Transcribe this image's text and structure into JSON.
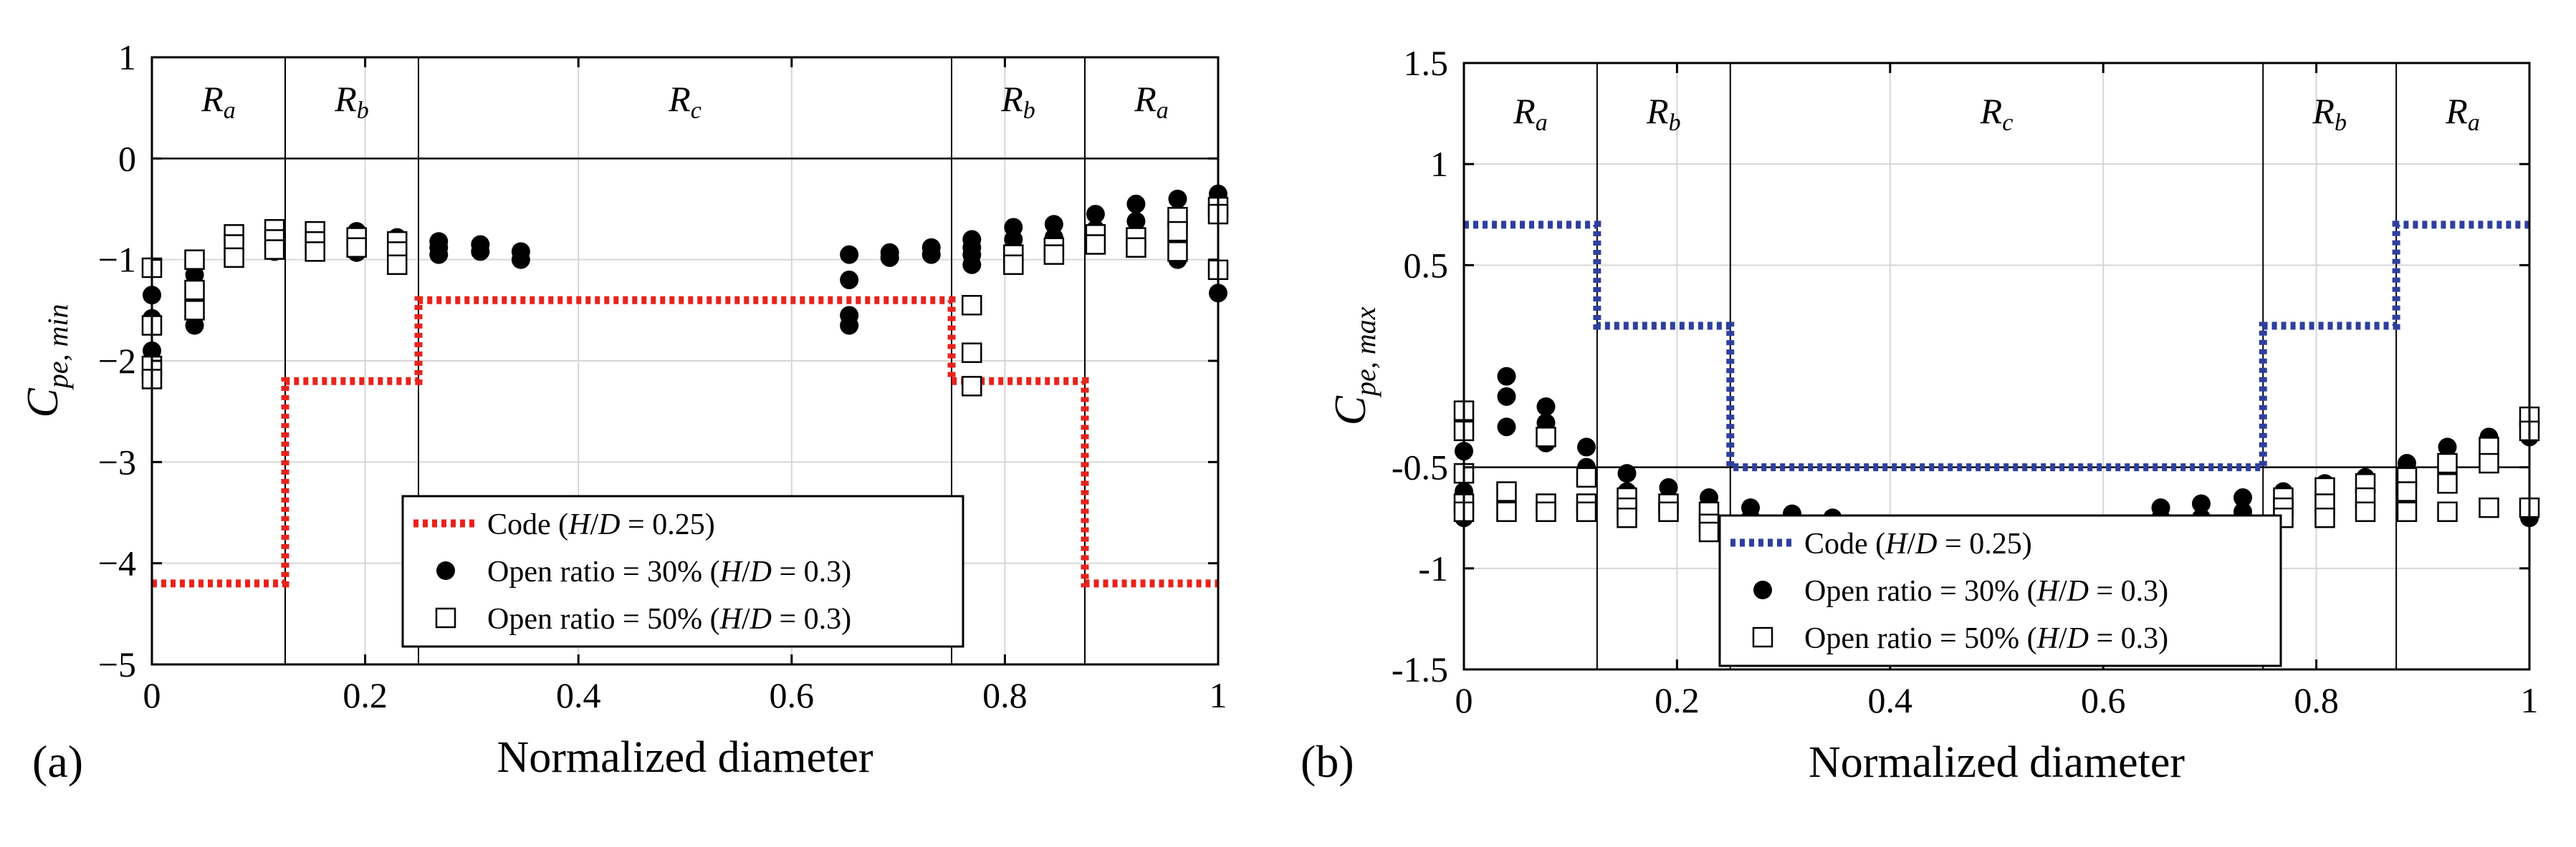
{
  "chart_data": [
    {
      "type": "scatter",
      "panel_label": "(a)",
      "title": "",
      "xlabel": "Normalized diameter",
      "ylabel": {
        "main": "C",
        "sub": "pe, min"
      },
      "xlim": [
        0,
        1
      ],
      "ylim": [
        -5,
        1
      ],
      "xticks": [
        0,
        0.2,
        0.4,
        0.6,
        0.8,
        1
      ],
      "xtick_labels": [
        "0",
        "0.2",
        "0.4",
        "0.6",
        "0.8",
        "1"
      ],
      "yticks": [
        1,
        0,
        -1,
        -2,
        -3,
        -4,
        -5
      ],
      "ytick_labels": [
        "1",
        "0",
        "−1",
        "−2",
        "−3",
        "−4",
        "−5"
      ],
      "grid": true,
      "reference_line_y": 0,
      "region_boundaries": [
        0.125,
        0.25,
        0.75,
        0.875
      ],
      "regions": [
        {
          "main": "R",
          "sub": "a",
          "x": 0.0625
        },
        {
          "main": "R",
          "sub": "b",
          "x": 0.1875
        },
        {
          "main": "R",
          "sub": "c",
          "x": 0.5
        },
        {
          "main": "R",
          "sub": "b",
          "x": 0.8125
        },
        {
          "main": "R",
          "sub": "a",
          "x": 0.9375
        }
      ],
      "legend": [
        {
          "marker": "dotted-line",
          "text": "Code (H/D = 0.25)"
        },
        {
          "marker": "filled-circle",
          "text": "Open ratio = 30% (H/D = 0.3)"
        },
        {
          "marker": "open-square",
          "text": "Open ratio = 50% (H/D = 0.3)"
        }
      ],
      "code_line": {
        "name": "Code (H/D = 0.25)",
        "color": "#e8231c",
        "x": [
          0,
          0.125,
          0.125,
          0.25,
          0.25,
          0.75,
          0.75,
          0.875,
          0.875,
          1
        ],
        "y": [
          -4.2,
          -4.2,
          -2.2,
          -2.2,
          -1.4,
          -1.4,
          -2.2,
          -2.2,
          -4.2,
          -4.2
        ]
      },
      "series": [
        {
          "name": "Open ratio = 30% (H/D = 0.3)",
          "marker": "filled-circle",
          "points": [
            [
              0,
              -1.35
            ],
            [
              0,
              -1.9
            ],
            [
              0,
              -1.58
            ],
            [
              0.04,
              -1.15
            ],
            [
              0.04,
              -1.4
            ],
            [
              0.04,
              -1.55
            ],
            [
              0.04,
              -1.65
            ],
            [
              0.077,
              -0.9
            ],
            [
              0.077,
              -0.98
            ],
            [
              0.115,
              -0.82
            ],
            [
              0.115,
              -0.92
            ],
            [
              0.153,
              -0.8
            ],
            [
              0.153,
              -0.9
            ],
            [
              0.192,
              -0.72
            ],
            [
              0.192,
              -0.85
            ],
            [
              0.192,
              -0.93
            ],
            [
              0.23,
              -0.78
            ],
            [
              0.23,
              -0.9
            ],
            [
              0.269,
              -0.82
            ],
            [
              0.269,
              -0.88
            ],
            [
              0.269,
              -0.95
            ],
            [
              0.308,
              -0.85
            ],
            [
              0.308,
              -0.92
            ],
            [
              0.346,
              -0.92
            ],
            [
              0.346,
              -1.0
            ],
            [
              0.654,
              -0.95
            ],
            [
              0.654,
              -1.2
            ],
            [
              0.654,
              -1.55
            ],
            [
              0.654,
              -1.65
            ],
            [
              0.692,
              -0.93
            ],
            [
              0.692,
              -0.98
            ],
            [
              0.731,
              -0.88
            ],
            [
              0.731,
              -0.95
            ],
            [
              0.769,
              -0.8
            ],
            [
              0.769,
              -0.88
            ],
            [
              0.769,
              -0.95
            ],
            [
              0.769,
              -1.05
            ],
            [
              0.808,
              -0.68
            ],
            [
              0.808,
              -0.8
            ],
            [
              0.808,
              -0.9
            ],
            [
              0.808,
              -1.0
            ],
            [
              0.846,
              -0.65
            ],
            [
              0.846,
              -0.78
            ],
            [
              0.846,
              -0.9
            ],
            [
              0.885,
              -0.55
            ],
            [
              0.885,
              -0.7
            ],
            [
              0.885,
              -0.85
            ],
            [
              0.923,
              -0.45
            ],
            [
              0.923,
              -0.62
            ],
            [
              0.923,
              -0.78
            ],
            [
              0.923,
              -0.88
            ],
            [
              0.962,
              -0.4
            ],
            [
              0.962,
              -0.55
            ],
            [
              0.962,
              -0.7
            ],
            [
              0.962,
              -0.9
            ],
            [
              0.962,
              -1.0
            ],
            [
              1,
              -0.35
            ],
            [
              1,
              -0.45
            ],
            [
              1,
              -1.33
            ]
          ]
        },
        {
          "name": "Open ratio = 50% (H/D = 0.3)",
          "marker": "open-square",
          "points": [
            [
              0,
              -1.08
            ],
            [
              0,
              -1.65
            ],
            [
              0,
              -2.05
            ],
            [
              0,
              -2.18
            ],
            [
              0.04,
              -1.0
            ],
            [
              0.04,
              -1.3
            ],
            [
              0.04,
              -1.5
            ],
            [
              0.077,
              -0.75
            ],
            [
              0.077,
              -0.85
            ],
            [
              0.077,
              -0.98
            ],
            [
              0.115,
              -0.7
            ],
            [
              0.115,
              -0.8
            ],
            [
              0.115,
              -0.9
            ],
            [
              0.153,
              -0.72
            ],
            [
              0.153,
              -0.82
            ],
            [
              0.153,
              -0.92
            ],
            [
              0.192,
              -0.78
            ],
            [
              0.192,
              -0.88
            ],
            [
              0.23,
              -0.82
            ],
            [
              0.23,
              -0.92
            ],
            [
              0.23,
              -1.05
            ],
            [
              0.769,
              -1.45
            ],
            [
              0.769,
              -1.92
            ],
            [
              0.769,
              -2.25
            ],
            [
              0.808,
              -0.95
            ],
            [
              0.808,
              -1.05
            ],
            [
              0.846,
              -0.88
            ],
            [
              0.846,
              -0.95
            ],
            [
              0.885,
              -0.75
            ],
            [
              0.885,
              -0.85
            ],
            [
              0.923,
              -0.78
            ],
            [
              0.923,
              -0.88
            ],
            [
              0.962,
              -0.58
            ],
            [
              0.962,
              -0.72
            ],
            [
              0.962,
              -0.92
            ],
            [
              1,
              -0.48
            ],
            [
              1,
              -0.55
            ],
            [
              1,
              -1.1
            ]
          ]
        }
      ]
    },
    {
      "type": "scatter",
      "panel_label": "(b)",
      "title": "",
      "xlabel": "Normalized diameter",
      "ylabel": {
        "main": "C",
        "sub": "pe, max"
      },
      "xlim": [
        0,
        1
      ],
      "ylim": [
        -1.5,
        1.5
      ],
      "xticks": [
        0,
        0.2,
        0.4,
        0.6,
        0.8,
        1
      ],
      "xtick_labels": [
        "0",
        "0.2",
        "0.4",
        "0.6",
        "0.8",
        "1"
      ],
      "yticks": [
        1.5,
        1,
        0.5,
        -0.5,
        -1,
        -1.5
      ],
      "ytick_labels": [
        "1.5",
        "1",
        "0.5",
        "-0.5",
        "-1",
        "-1.5"
      ],
      "grid": true,
      "reference_line_y": -0.5,
      "region_boundaries": [
        0.125,
        0.25,
        0.75,
        0.875
      ],
      "regions": [
        {
          "main": "R",
          "sub": "a",
          "x": 0.0625
        },
        {
          "main": "R",
          "sub": "b",
          "x": 0.1875
        },
        {
          "main": "R",
          "sub": "c",
          "x": 0.5
        },
        {
          "main": "R",
          "sub": "b",
          "x": 0.8125
        },
        {
          "main": "R",
          "sub": "a",
          "x": 0.9375
        }
      ],
      "legend": [
        {
          "marker": "dotted-line",
          "text": "Code (H/D = 0.25)"
        },
        {
          "marker": "filled-circle",
          "text": "Open ratio = 30% (H/D = 0.3)"
        },
        {
          "marker": "open-square",
          "text": "Open ratio = 50% (H/D = 0.3)"
        }
      ],
      "code_line": {
        "name": "Code (H/D = 0.25)",
        "color": "#2e3f9e",
        "x": [
          0,
          0.125,
          0.125,
          0.25,
          0.25,
          0.75,
          0.75,
          0.875,
          0.875,
          1
        ],
        "y": [
          0.7,
          0.7,
          0.2,
          0.2,
          -0.5,
          -0.5,
          0.2,
          0.2,
          0.7,
          0.7
        ]
      },
      "series": [
        {
          "name": "Open ratio = 30% (H/D = 0.3)",
          "marker": "filled-circle",
          "points": [
            [
              0,
              -0.42
            ],
            [
              0,
              -0.62
            ],
            [
              0,
              -0.75
            ],
            [
              0.04,
              -0.05
            ],
            [
              0.04,
              -0.15
            ],
            [
              0.04,
              -0.3
            ],
            [
              0.04,
              -0.72
            ],
            [
              0.077,
              -0.2
            ],
            [
              0.077,
              -0.28
            ],
            [
              0.077,
              -0.38
            ],
            [
              0.115,
              -0.4
            ],
            [
              0.115,
              -0.5
            ],
            [
              0.153,
              -0.53
            ],
            [
              0.153,
              -0.62
            ],
            [
              0.153,
              -0.72
            ],
            [
              0.192,
              -0.6
            ],
            [
              0.192,
              -0.7
            ],
            [
              0.23,
              -0.65
            ],
            [
              0.23,
              -0.75
            ],
            [
              0.269,
              -0.7
            ],
            [
              0.269,
              -0.75
            ],
            [
              0.308,
              -0.73
            ],
            [
              0.308,
              -0.78
            ],
            [
              0.346,
              -0.75
            ],
            [
              0.346,
              -0.8
            ],
            [
              0.654,
              -0.7
            ],
            [
              0.654,
              -0.75
            ],
            [
              0.654,
              -0.8
            ],
            [
              0.692,
              -0.68
            ],
            [
              0.692,
              -0.75
            ],
            [
              0.731,
              -0.65
            ],
            [
              0.731,
              -0.72
            ],
            [
              0.731,
              -0.78
            ],
            [
              0.769,
              -0.62
            ],
            [
              0.769,
              -0.72
            ],
            [
              0.808,
              -0.58
            ],
            [
              0.808,
              -0.65
            ],
            [
              0.846,
              -0.55
            ],
            [
              0.846,
              -0.6
            ],
            [
              0.885,
              -0.48
            ],
            [
              0.885,
              -0.58
            ],
            [
              0.923,
              -0.4
            ],
            [
              0.923,
              -0.5
            ],
            [
              0.962,
              -0.35
            ],
            [
              0.962,
              -0.45
            ],
            [
              1,
              -0.25
            ],
            [
              1,
              -0.35
            ],
            [
              1,
              -0.75
            ]
          ]
        },
        {
          "name": "Open ratio = 50% (H/D = 0.3)",
          "marker": "open-square",
          "points": [
            [
              0,
              -0.22
            ],
            [
              0,
              -0.32
            ],
            [
              0,
              -0.53
            ],
            [
              0,
              -0.68
            ],
            [
              0,
              -0.72
            ],
            [
              0.04,
              -0.62
            ],
            [
              0.04,
              -0.72
            ],
            [
              0.077,
              -0.35
            ],
            [
              0.077,
              -0.68
            ],
            [
              0.077,
              -0.72
            ],
            [
              0.115,
              -0.55
            ],
            [
              0.115,
              -0.68
            ],
            [
              0.115,
              -0.72
            ],
            [
              0.153,
              -0.65
            ],
            [
              0.153,
              -0.7
            ],
            [
              0.153,
              -0.75
            ],
            [
              0.192,
              -0.68
            ],
            [
              0.192,
              -0.72
            ],
            [
              0.23,
              -0.72
            ],
            [
              0.23,
              -0.78
            ],
            [
              0.23,
              -0.82
            ],
            [
              0.769,
              -0.65
            ],
            [
              0.769,
              -0.7
            ],
            [
              0.769,
              -0.75
            ],
            [
              0.808,
              -0.6
            ],
            [
              0.808,
              -0.68
            ],
            [
              0.808,
              -0.75
            ],
            [
              0.846,
              -0.58
            ],
            [
              0.846,
              -0.65
            ],
            [
              0.846,
              -0.72
            ],
            [
              0.885,
              -0.55
            ],
            [
              0.885,
              -0.62
            ],
            [
              0.885,
              -0.72
            ],
            [
              0.923,
              -0.48
            ],
            [
              0.923,
              -0.58
            ],
            [
              0.923,
              -0.72
            ],
            [
              0.962,
              -0.4
            ],
            [
              0.962,
              -0.48
            ],
            [
              0.962,
              -0.7
            ],
            [
              1,
              -0.25
            ],
            [
              1,
              -0.32
            ],
            [
              1,
              -0.7
            ]
          ]
        }
      ]
    }
  ]
}
